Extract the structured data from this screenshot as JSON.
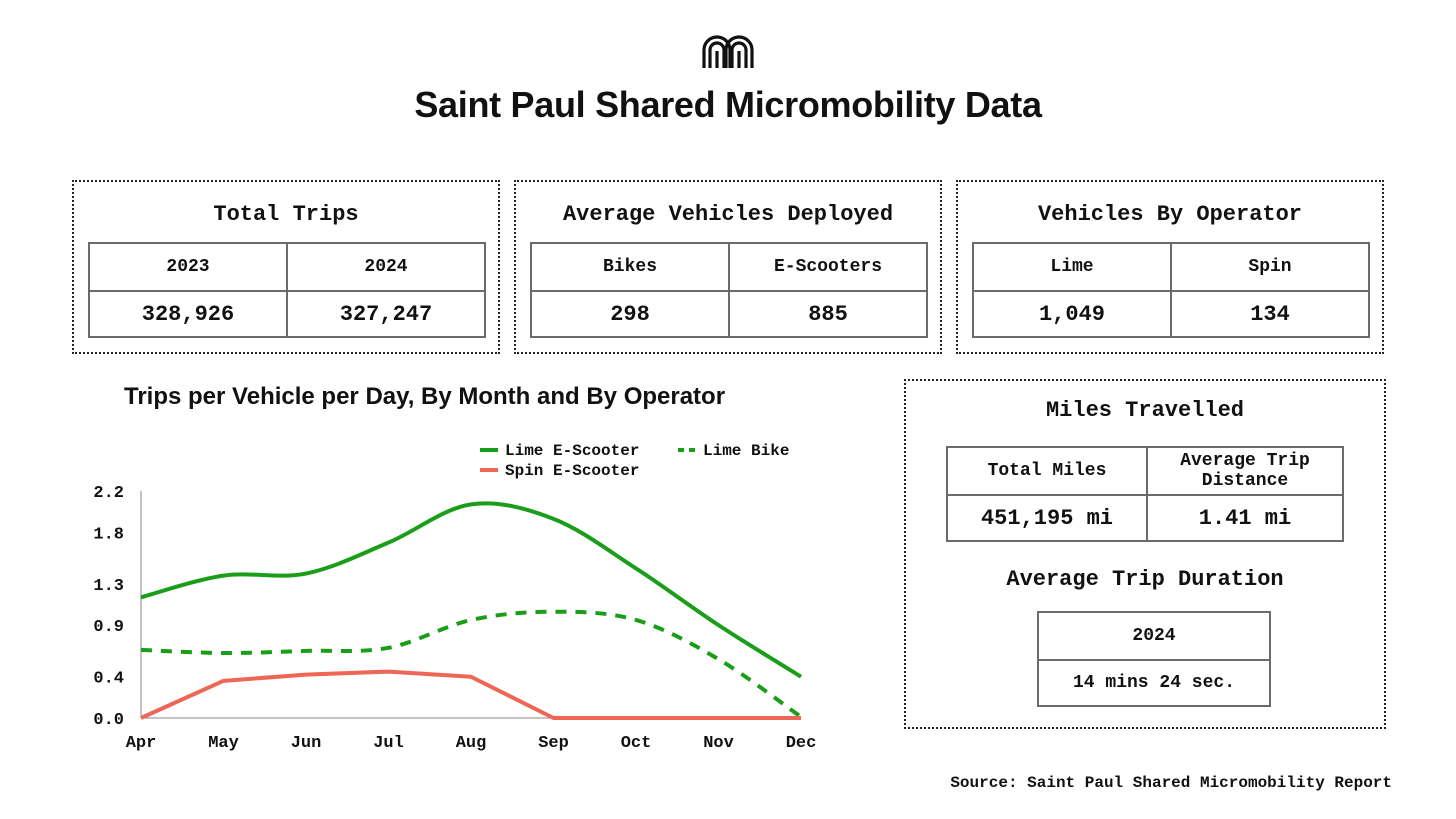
{
  "page": {
    "title": "Saint Paul Shared Micromobility Data",
    "logo_icon": "arches-logo-icon",
    "source": "Source: Saint Paul Shared Micromobility Report"
  },
  "total_trips": {
    "title": "Total Trips",
    "headers": [
      "2023",
      "2024"
    ],
    "values": [
      "328,926",
      "327,247"
    ]
  },
  "avg_vehicles": {
    "title": "Average Vehicles Deployed",
    "headers": [
      "Bikes",
      "E-Scooters"
    ],
    "values": [
      "298",
      "885"
    ]
  },
  "vehicles_by_operator": {
    "title": "Vehicles By Operator",
    "headers": [
      "Lime",
      "Spin"
    ],
    "values": [
      "1,049",
      "134"
    ]
  },
  "miles": {
    "title": "Miles Travelled",
    "headers": [
      "Total Miles",
      "Average Trip Distance"
    ],
    "values": [
      "451,195 mi",
      "1.41 mi"
    ],
    "duration_title": "Average Trip Duration",
    "duration_header": "2024",
    "duration_value": "14 mins 24 sec."
  },
  "chart_data": {
    "type": "line",
    "title": "Trips per Vehicle per Day, By Month and By Operator",
    "xlabel": "",
    "ylabel": "",
    "categories": [
      "Apr",
      "May",
      "Jun",
      "Jul",
      "Aug",
      "Sep",
      "Oct",
      "Nov",
      "Dec"
    ],
    "y_ticks": [
      "2.2",
      "1.8",
      "1.3",
      "0.9",
      "0.4",
      "0.0"
    ],
    "ylim": [
      0,
      2.2
    ],
    "legend_position": "top-right",
    "series": [
      {
        "name": "Lime E-Scooter",
        "color": "#1a9e1a",
        "dash": false,
        "smooth": true,
        "values": [
          1.17,
          1.38,
          1.4,
          1.7,
          2.07,
          1.93,
          1.45,
          0.9,
          0.4
        ]
      },
      {
        "name": "Lime Bike",
        "color": "#1a9e1a",
        "dash": true,
        "smooth": true,
        "values": [
          0.66,
          0.63,
          0.65,
          0.68,
          0.95,
          1.03,
          0.95,
          0.57,
          0.01
        ]
      },
      {
        "name": "Spin E-Scooter",
        "color": "#ee6655",
        "dash": false,
        "smooth": false,
        "values": [
          0.0,
          0.36,
          0.42,
          0.45,
          0.4,
          0.0,
          0.0,
          0.0,
          0.0
        ]
      }
    ]
  }
}
